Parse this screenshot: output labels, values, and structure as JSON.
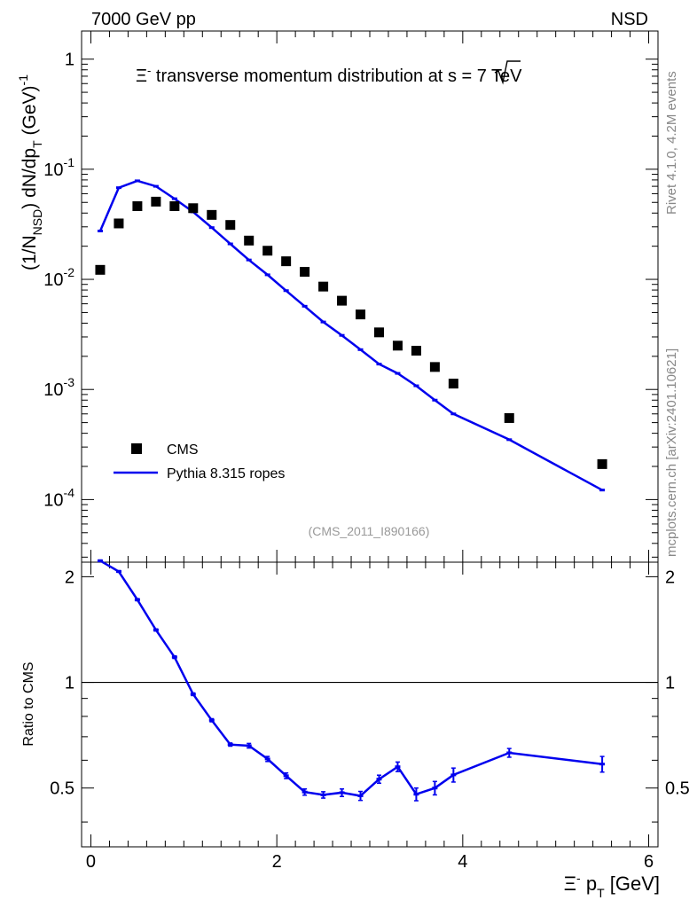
{
  "header": {
    "energy_label": "7000 GeV pp",
    "process_label": "NSD",
    "rivet_label": "Rivet 4.1.0,  4.2M events",
    "mcplots_label": "mcplots.cern.ch [arXiv:2401.10621]"
  },
  "chart_data": [
    {
      "type": "scatter+line",
      "title": "Ξ⁻ transverse momentum distribution at √s = 7 TeV",
      "title_parts": {
        "prefix": "Ξ",
        "prefix_sup": "-",
        "mid": " transverse momentum distribution at ",
        "sqrt_s": "s",
        "suffix": " = 7 TeV"
      },
      "analysis_tag": "(CMS_2011_I890166)",
      "ylabel": "(1/N_NSD) dN/dp_T (GeV)^-1",
      "ylabel_parts": {
        "a": "(1/N",
        "a_sub": "NSD",
        "b": ") dN/dp",
        "b_sub": "T",
        "c": " (GeV)",
        "c_sup": "-1"
      },
      "yscale": "log",
      "ylim": [
        2.7e-05,
        1.8
      ],
      "xlim": [
        -0.1,
        6.1
      ],
      "y_ticks": [
        {
          "value": 1,
          "base": "1",
          "exp": ""
        },
        {
          "value": 0.1,
          "base": "10",
          "exp": "-1"
        },
        {
          "value": 0.01,
          "base": "10",
          "exp": "-2"
        },
        {
          "value": 0.001,
          "base": "10",
          "exp": "-3"
        },
        {
          "value": 0.0001,
          "base": "10",
          "exp": "-4"
        }
      ],
      "legend": {
        "position": "lower-left",
        "entries": [
          "CMS",
          "Pythia 8.315 ropes"
        ]
      },
      "series": [
        {
          "name": "CMS",
          "style": "black-square-markers",
          "x": [
            0.1,
            0.3,
            0.5,
            0.7,
            0.9,
            1.1,
            1.3,
            1.5,
            1.7,
            1.9,
            2.1,
            2.3,
            2.5,
            2.7,
            2.9,
            3.1,
            3.3,
            3.5,
            3.7,
            3.9,
            4.5,
            5.5
          ],
          "y": [
            0.0122,
            0.0322,
            0.0462,
            0.0508,
            0.0462,
            0.0443,
            0.0385,
            0.0312,
            0.0225,
            0.0182,
            0.0146,
            0.0117,
            0.0086,
            0.0064,
            0.0048,
            0.0033,
            0.0025,
            0.00225,
            0.0016,
            0.00113,
            0.00055,
            0.00021
          ]
        },
        {
          "name": "Pythia 8.315 ropes",
          "style": "blue-line",
          "color": "#0000ee",
          "x": [
            0.1,
            0.3,
            0.5,
            0.7,
            0.9,
            1.1,
            1.3,
            1.5,
            1.7,
            1.9,
            2.1,
            2.3,
            2.5,
            2.7,
            2.9,
            3.1,
            3.3,
            3.5,
            3.7,
            3.9,
            4.5,
            5.5
          ],
          "y": [
            0.0275,
            0.068,
            0.0785,
            0.07,
            0.054,
            0.041,
            0.0295,
            0.021,
            0.015,
            0.011,
            0.0079,
            0.0057,
            0.0041,
            0.0031,
            0.0023,
            0.0017,
            0.0014,
            0.00108,
            0.0008,
            0.0006,
            0.00035,
            0.000122
          ]
        }
      ]
    },
    {
      "type": "line",
      "ylabel": "Ratio to CMS",
      "xlabel": "Ξ⁻ p_T [GeV]",
      "xlabel_parts": {
        "a": "Ξ",
        "a_sup": "-",
        "b": " p",
        "b_sub": "T",
        "c": " [GeV]"
      },
      "xlim": [
        -0.1,
        6.1
      ],
      "ylim": [
        0.34,
        2.2
      ],
      "x_ticks": [
        "0",
        "2",
        "4",
        "6"
      ],
      "x_tick_values": [
        0,
        2,
        4,
        6
      ],
      "y_ticks": [
        "0.5",
        "1",
        "2"
      ],
      "y_tick_values": [
        0.5,
        1,
        2
      ],
      "reference_line": 1,
      "series": [
        {
          "name": "Pythia 8.315 ropes / CMS",
          "color": "#0000ee",
          "x": [
            0.1,
            0.3,
            0.5,
            0.7,
            0.9,
            1.1,
            1.3,
            1.5,
            1.7,
            1.9,
            2.1,
            2.3,
            2.5,
            2.7,
            2.9,
            3.1,
            3.3,
            3.5,
            3.7,
            3.9,
            4.5,
            5.5
          ],
          "y": [
            2.22,
            2.07,
            1.72,
            1.41,
            1.18,
            0.925,
            0.78,
            0.665,
            0.66,
            0.605,
            0.542,
            0.487,
            0.478,
            0.485,
            0.475,
            0.53,
            0.575,
            0.48,
            0.5,
            0.545,
            0.63,
            0.585
          ],
          "err": [
            0.012,
            0.012,
            0.012,
            0.01,
            0.01,
            0.008,
            0.008,
            0.007,
            0.01,
            0.01,
            0.01,
            0.01,
            0.01,
            0.012,
            0.014,
            0.014,
            0.018,
            0.02,
            0.022,
            0.025,
            0.018,
            0.03
          ]
        }
      ]
    }
  ]
}
